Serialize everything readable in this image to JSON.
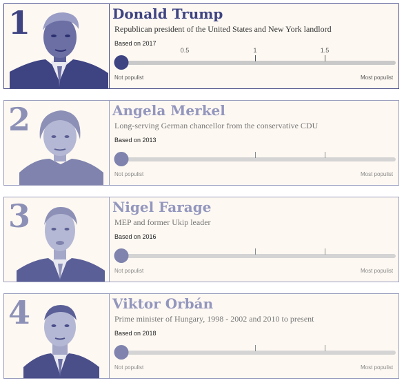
{
  "scale": {
    "min": 0,
    "max": 2,
    "ticks": [
      "0.5",
      "1",
      "1.5"
    ],
    "low_label": "Not populist",
    "high_label": "Most populist"
  },
  "cards": [
    {
      "rank": "1",
      "name": "Donald Trump",
      "description": "Republican president of the United States and New York landlord",
      "based_on": "Based on 2017",
      "score": 0,
      "active": true
    },
    {
      "rank": "2",
      "name": "Angela Merkel",
      "description": "Long-serving German chancellor from the conservative CDU",
      "based_on": "Based on 2013",
      "score": 0,
      "active": false
    },
    {
      "rank": "3",
      "name": "Nigel Farage",
      "description": "MEP and former Ukip leader",
      "based_on": "Based on 2016",
      "score": 0,
      "active": false
    },
    {
      "rank": "4",
      "name": "Viktor Orbán",
      "description": "Prime minister of Hungary, 1998 - 2002 and 2010 to present",
      "based_on": "Based on 2018",
      "score": 0,
      "active": false
    }
  ],
  "colors": {
    "accent": "#3e4382",
    "inactive_accent": "#8d90b6",
    "card_background": "#fdf8f2",
    "track": "#c9c9c9"
  }
}
